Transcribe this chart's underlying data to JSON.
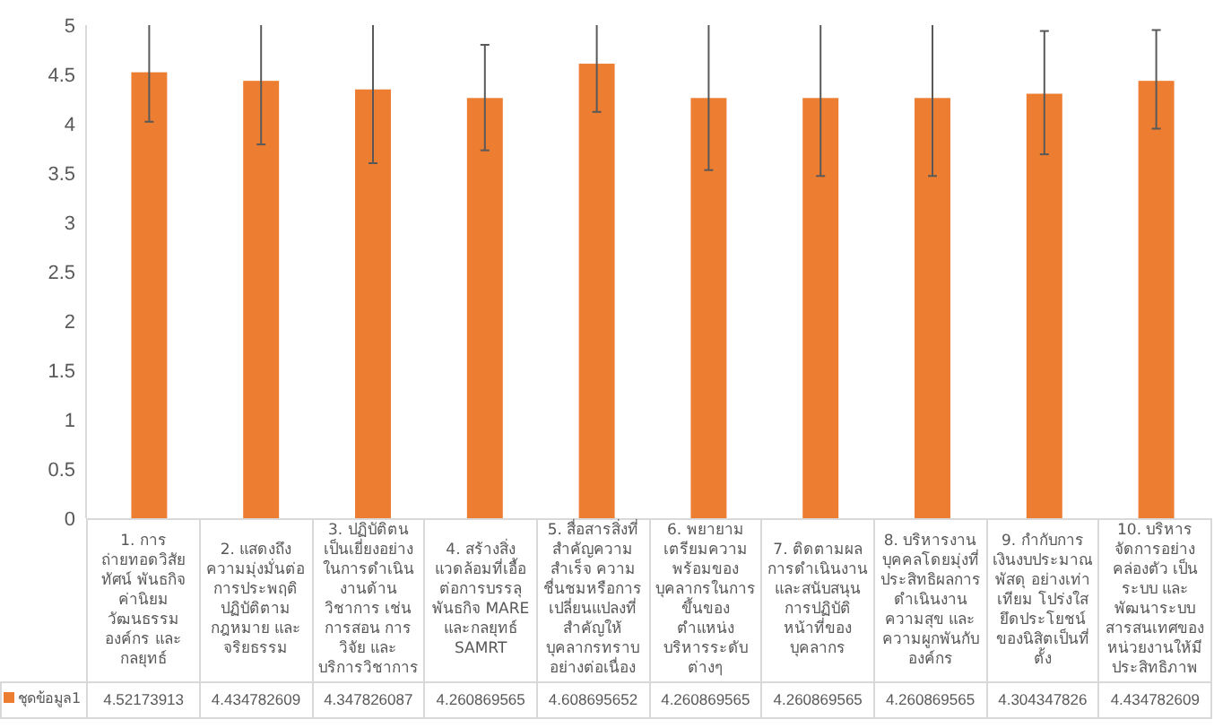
{
  "chart_data": {
    "type": "bar",
    "categories": [
      "1. การถ่ายทอดวิสัยทัศน์ พันธกิจ ค่านิยม วัฒนธรรมองค์กร และกลยุทธ์",
      "2. แสดงถึงความมุ่งมั่นต่อการประพฤติปฏิบัติตามกฎหมาย และจริยธรรม",
      "3. ปฏิบัติตนเป็นเยี่ยงอย่างในการดำเนินงานด้านวิชาการ เช่น การสอน การวิจัย และบริการวิชาการ",
      "4. สร้างสิ่งแวดล้อมที่เอื้อต่อการบรรลุพันธกิจ MARE และกลยุทธ์ SAMRT",
      "5. สื่อสารสิ่งที่สำคัญความสำเร็จ ความชื่นชมหรือการเปลี่ยนแปลงที่สำคัญให้บุคลากรทราบอย่างต่อเนื่อง",
      "6. พยายามเตรียมความพร้อมของบุคลากรในการขึ้นของตำแหน่งบริหารระดับต่างๆ",
      "7. ติดตามผลการดำเนินงาน และสนับสนุนการปฏิบัติหน้าที่ของบุคลากร",
      "8. บริหารงานบุคคลโดยมุ่งที่ประสิทธิผลการดำเนินงาน ความสุข และความผูกพันกับองค์กร",
      "9. กำกับการเงินงบประมาณ พัสดุ อย่างเท่าเทียม โปร่งใส ยึดประโยชน์ของนิสิตเป็นที่ตั้ง",
      "10. บริหารจัดการอย่างคล่องตัว เป็นระบบ และพัฒนาระบบสารสนเทศของหน่วยงานให้มีประสิทธิภาพ"
    ],
    "series": [
      {
        "name": "ชุดข้อมูล1",
        "color": "#ed7d31",
        "values": [
          4.52173913,
          4.434782609,
          4.347826087,
          4.260869565,
          4.608695652,
          4.260869565,
          4.260869565,
          4.260869565,
          4.304347826,
          4.434782609
        ],
        "errors": [
          [
            4.02,
            5
          ],
          [
            3.79,
            5
          ],
          [
            3.6,
            5
          ],
          [
            3.73,
            4.8
          ],
          [
            4.12,
            5
          ],
          [
            3.53,
            5
          ],
          [
            3.47,
            5
          ],
          [
            3.47,
            5
          ],
          [
            3.69,
            4.94
          ],
          [
            3.95,
            4.95
          ]
        ]
      }
    ],
    "ylim": [
      0,
      5
    ],
    "yticks": [
      0,
      0.5,
      1,
      1.5,
      2,
      2.5,
      3,
      3.5,
      4,
      4.5,
      5
    ],
    "data_labels": true,
    "legend": "bottom",
    "grid": false
  }
}
